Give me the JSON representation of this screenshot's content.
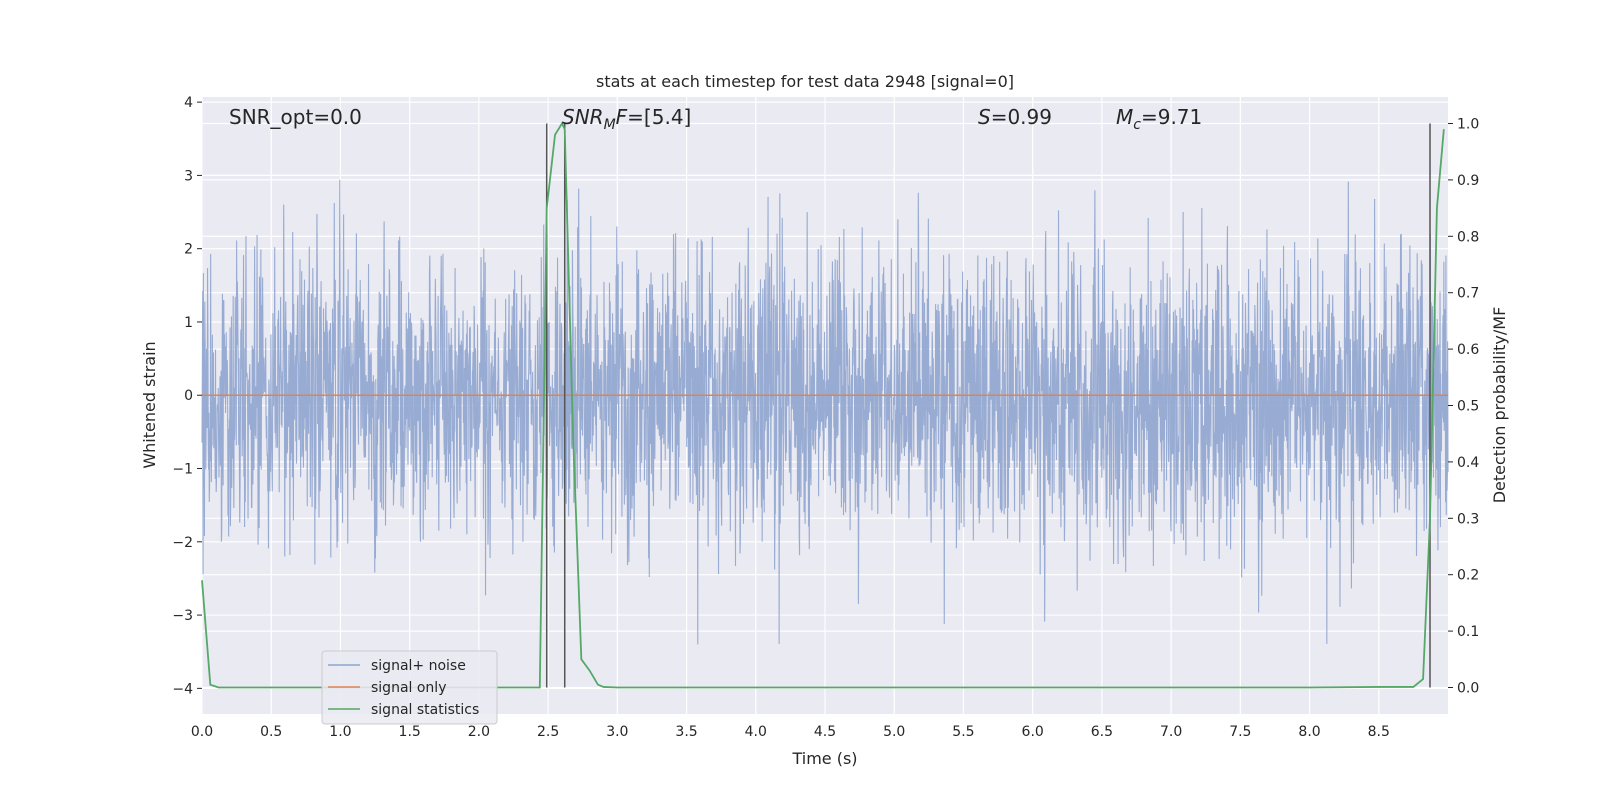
{
  "chart_data": {
    "type": "line",
    "title": "stats at each timestep for test data 2948 [signal=0]",
    "xlabel": "Time (s)",
    "ylabel": "Whitened strain",
    "y2label": "Detection probability/MF",
    "xlim": [
      0.0,
      9.0
    ],
    "ylim": [
      -4.35,
      4.07
    ],
    "y2lim": [
      -0.047,
      1.047
    ],
    "x_ticks": [
      "0.0",
      "0.5",
      "1.0",
      "1.5",
      "2.0",
      "2.5",
      "3.0",
      "3.5",
      "4.0",
      "4.5",
      "5.0",
      "5.5",
      "6.0",
      "6.5",
      "7.0",
      "7.5",
      "8.0",
      "8.5"
    ],
    "y_ticks": [
      "4",
      "3",
      "2",
      "1",
      "0",
      "−1",
      "−2",
      "−3",
      "−4"
    ],
    "y2_ticks": [
      "1.0",
      "0.9",
      "0.8",
      "0.7",
      "0.6",
      "0.5",
      "0.4",
      "0.3",
      "0.2",
      "0.1",
      "0.0"
    ],
    "grid": true,
    "legend_position": "bottom-left",
    "annotations": {
      "snr_opt": "SNR_opt=0.0",
      "snr_mf_base": "SNR",
      "snr_mf_sub": "M",
      "snr_mf_rest": "F=[5.4]",
      "s_var": "S",
      "s_rest": "=0.99",
      "mc_var": "M",
      "mc_sub": "c",
      "mc_rest": "=9.71"
    },
    "vertical_markers_x": [
      2.49,
      2.62,
      8.87
    ],
    "series": [
      {
        "name": "signal+ noise",
        "color": "#8fa4ce",
        "axis": "left",
        "description_values": "whitened noise, approx. gaussian, std ~1, range about -3.4 to 3.7"
      },
      {
        "name": "signal only",
        "color": "#dd8452",
        "axis": "left",
        "x": [
          0.0,
          9.0
        ],
        "values": [
          0.0,
          0.0
        ]
      },
      {
        "name": "signal statistics",
        "color": "#55a868",
        "axis": "right",
        "x": [
          0.0,
          0.06,
          0.12,
          0.5,
          1.0,
          1.5,
          2.0,
          2.44,
          2.49,
          2.55,
          2.6,
          2.62,
          2.68,
          2.74,
          2.8,
          2.86,
          2.9,
          3.0,
          4.0,
          5.0,
          6.0,
          7.0,
          8.0,
          8.5,
          8.75,
          8.82,
          8.87,
          8.92,
          8.97
        ],
        "values": [
          0.19,
          0.005,
          0.0,
          0.0,
          0.0,
          0.0,
          0.0,
          0.0,
          0.85,
          0.98,
          1.0,
          0.99,
          0.45,
          0.05,
          0.03,
          0.005,
          0.001,
          0.0,
          0.0,
          0.0,
          0.0,
          0.0,
          0.0,
          0.001,
          0.001,
          0.015,
          0.3,
          0.85,
          0.99
        ]
      }
    ]
  }
}
